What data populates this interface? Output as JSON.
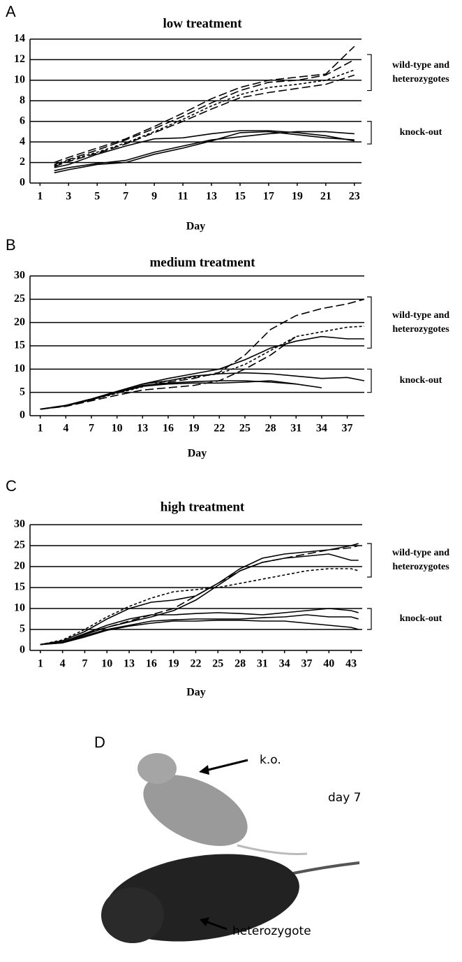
{
  "chart_data": [
    {
      "type": "line",
      "panel": "A",
      "title": "low treatment",
      "xlabel": "Day",
      "x": [
        2,
        3,
        5,
        7,
        9,
        11,
        13,
        15,
        17,
        19,
        21,
        23
      ],
      "xlim": [
        0.3,
        23.5
      ],
      "xticks": [
        1,
        3,
        5,
        7,
        9,
        11,
        13,
        15,
        17,
        19,
        21,
        23
      ],
      "ylim": [
        0,
        14
      ],
      "yticks": [
        0,
        2,
        4,
        6,
        8,
        10,
        12,
        14
      ],
      "grid": true,
      "series": [
        {
          "color": "#000",
          "dash": "long",
          "values": [
            2,
            2.5,
            3.4,
            4.3,
            5.5,
            6.8,
            8.2,
            9.3,
            10,
            10.3,
            10.6,
            13.3
          ]
        },
        {
          "color": "#000",
          "dash": "long",
          "values": [
            1.8,
            2.3,
            3.2,
            4.2,
            5.3,
            6.5,
            7.8,
            9,
            9.8,
            10,
            10.5,
            12
          ]
        },
        {
          "color": "#000",
          "dash": "long",
          "values": [
            1.6,
            2.1,
            2.9,
            3.8,
            4.9,
            6,
            7.2,
            8.3,
            8.8,
            9.2,
            9.6,
            10.5
          ]
        },
        {
          "color": "#000",
          "dash": "short",
          "values": [
            1.7,
            2.2,
            3,
            3.9,
            5,
            6.2,
            7.5,
            8.6,
            9.3,
            9.6,
            10,
            11
          ]
        },
        {
          "color": "#000",
          "dash": "solid",
          "values": [
            1.5,
            1.8,
            2.8,
            3.6,
            4.3,
            4.4,
            4.8,
            5.1,
            5.1,
            4.9,
            4.6,
            4.1
          ]
        },
        {
          "color": "#000",
          "dash": "solid",
          "values": [
            1.2,
            1.5,
            1.9,
            2.2,
            3,
            3.6,
            4.2,
            4.5,
            4.8,
            5,
            5,
            4.8
          ]
        },
        {
          "color": "#000",
          "dash": "solid",
          "values": [
            1,
            1.3,
            1.8,
            2,
            2.8,
            3.4,
            4.1,
            4.9,
            5,
            4.7,
            4.4,
            4.2
          ]
        }
      ],
      "annotations": [
        {
          "lines": [
            "wild-type and",
            "heterozygotes"
          ],
          "range": [
            9,
            12.5
          ]
        },
        {
          "lines": [
            "knock-out"
          ],
          "range": [
            3.8,
            6
          ]
        }
      ]
    },
    {
      "type": "line",
      "panel": "B",
      "title": "medium treatment",
      "xlabel": "Day",
      "x": [
        1,
        4,
        7,
        10,
        13,
        16,
        19,
        22,
        25,
        28,
        31,
        34,
        37,
        39
      ],
      "xlim": [
        -0.2,
        39
      ],
      "xticks": [
        1,
        4,
        7,
        10,
        13,
        16,
        19,
        22,
        25,
        28,
        31,
        34,
        37
      ],
      "ylim": [
        0,
        30
      ],
      "yticks": [
        0,
        5,
        10,
        15,
        20,
        25,
        30
      ],
      "grid": true,
      "series": [
        {
          "color": "#000",
          "dash": "long",
          "values": [
            1.4,
            2.2,
            3.5,
            5,
            6.3,
            7.2,
            8,
            9.3,
            13,
            18.5,
            21.5,
            23,
            24,
            25
          ]
        },
        {
          "color": "#000",
          "dash": "solid",
          "values": [
            1.4,
            2.2,
            3.6,
            5.2,
            6.8,
            8,
            9,
            10,
            12,
            14.5,
            16,
            17,
            16.5,
            16.5
          ]
        },
        {
          "color": "#000",
          "dash": "short",
          "values": [
            1.4,
            2.1,
            3.4,
            4.8,
            6.2,
            7.5,
            8.3,
            9,
            11,
            14,
            17,
            18,
            19,
            19.2
          ]
        },
        {
          "color": "#000",
          "dash": "long",
          "values": [
            1.4,
            2,
            3.2,
            4.4,
            5.5,
            6,
            6.5,
            7.5,
            10,
            13,
            17,
            null,
            null,
            null
          ]
        },
        {
          "color": "#000",
          "dash": "solid",
          "values": [
            1.4,
            2.2,
            3.6,
            5.2,
            6.8,
            7.5,
            8.5,
            9,
            9.2,
            9,
            8.5,
            8,
            8.2,
            7.5
          ]
        },
        {
          "color": "#000",
          "dash": "solid",
          "values": [
            1.4,
            2.1,
            3.4,
            5,
            6.5,
            7,
            7.3,
            7.5,
            7.5,
            7.2,
            6.8,
            6,
            null,
            null
          ]
        },
        {
          "color": "#000",
          "dash": "solid",
          "values": [
            1.4,
            2.1,
            3.5,
            5,
            6.3,
            6.8,
            7,
            7,
            7.2,
            7.5,
            6.8,
            null,
            null,
            null
          ]
        }
      ],
      "annotations": [
        {
          "lines": [
            "wild-type and",
            "heterozygotes"
          ],
          "range": [
            14.5,
            25.5
          ]
        },
        {
          "lines": [
            "knock-out"
          ],
          "range": [
            5,
            10
          ]
        }
      ]
    },
    {
      "type": "line",
      "panel": "C",
      "title": "high treatment",
      "xlabel": "Day",
      "x": [
        1,
        4,
        7,
        10,
        13,
        16,
        19,
        22,
        25,
        28,
        31,
        34,
        37,
        40,
        43,
        44
      ],
      "xlim": [
        -0.4,
        44.5
      ],
      "xticks": [
        1,
        4,
        7,
        10,
        13,
        16,
        19,
        22,
        25,
        28,
        31,
        34,
        37,
        40,
        43
      ],
      "ylim": [
        0,
        30
      ],
      "yticks": [
        0,
        5,
        10,
        15,
        20,
        25,
        30
      ],
      "grid": true,
      "series": [
        {
          "color": "#000",
          "dash": "short",
          "values": [
            1.4,
            2.5,
            5,
            8,
            10.5,
            12.5,
            14,
            14.5,
            15,
            16,
            17,
            18,
            19,
            19.5,
            19.5,
            19
          ]
        },
        {
          "color": "#000",
          "dash": "solid",
          "values": [
            1.4,
            2.3,
            4.5,
            7.5,
            10,
            11.5,
            12,
            13,
            16,
            19.5,
            22,
            23,
            23.5,
            24,
            25,
            25.5
          ]
        },
        {
          "color": "#000",
          "dash": "long",
          "values": [
            1.4,
            2,
            4,
            5.5,
            7,
            8.5,
            10,
            13,
            16,
            19,
            21,
            22,
            23,
            24,
            24.5,
            25
          ]
        },
        {
          "color": "#000",
          "dash": "solid",
          "values": [
            1.4,
            2,
            3.8,
            5.5,
            6.8,
            8,
            9.5,
            12,
            15.5,
            19,
            21,
            22,
            22.5,
            23,
            21.5,
            21.5
          ]
        },
        {
          "color": "#000",
          "dash": "solid",
          "values": [
            1.4,
            2,
            4,
            6,
            7.5,
            8.5,
            8.5,
            8.8,
            9,
            8.8,
            8.5,
            9,
            9.5,
            10,
            9.5,
            9
          ]
        },
        {
          "color": "#000",
          "dash": "solid",
          "values": [
            1.4,
            1.8,
            3.5,
            5,
            6,
            7,
            7.3,
            7.5,
            7.5,
            7.5,
            7.8,
            8,
            8.5,
            8,
            8,
            7.5
          ]
        },
        {
          "color": "#000",
          "dash": "solid",
          "values": [
            1.4,
            1.8,
            3.2,
            4.8,
            5.8,
            6.5,
            7,
            7,
            7.2,
            7.2,
            7,
            7,
            6.5,
            6,
            5.5,
            5
          ]
        }
      ],
      "annotations": [
        {
          "lines": [
            "wild-type and",
            "heterozygotes"
          ],
          "range": [
            17.5,
            25.5
          ]
        },
        {
          "lines": [
            "knock-out"
          ],
          "range": [
            5,
            10
          ]
        }
      ]
    }
  ],
  "photo": {
    "panel": "D",
    "labels": [
      "k.o.",
      "day 7",
      "heterozygote"
    ]
  }
}
